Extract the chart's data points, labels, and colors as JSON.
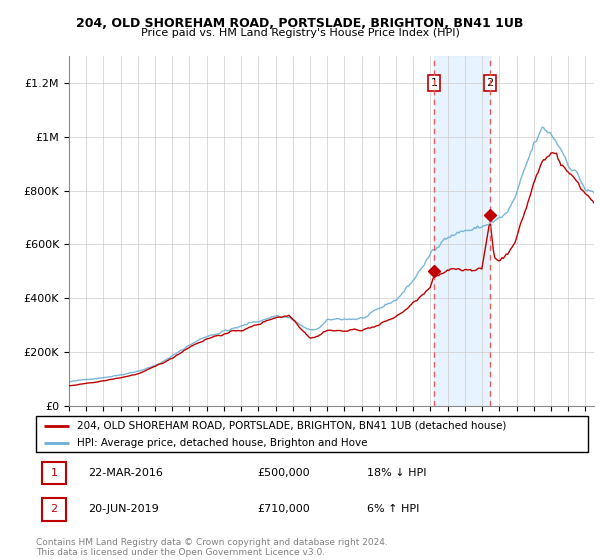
{
  "title1": "204, OLD SHOREHAM ROAD, PORTSLADE, BRIGHTON, BN41 1UB",
  "title2": "Price paid vs. HM Land Registry's House Price Index (HPI)",
  "legend_line1": "204, OLD SHOREHAM ROAD, PORTSLADE, BRIGHTON, BN41 1UB (detached house)",
  "legend_line2": "HPI: Average price, detached house, Brighton and Hove",
  "transaction1_date": "22-MAR-2016",
  "transaction1_price": "£500,000",
  "transaction1_hpi": "18% ↓ HPI",
  "transaction2_date": "20-JUN-2019",
  "transaction2_price": "£710,000",
  "transaction2_hpi": "6% ↑ HPI",
  "footnote": "Contains HM Land Registry data © Crown copyright and database right 2024.\nThis data is licensed under the Open Government Licence v3.0.",
  "hpi_color": "#6baed6",
  "price_color": "#c00000",
  "vline_color": "#e06060",
  "highlight_color": "#ddeeff",
  "ylim": [
    0,
    1300000
  ],
  "yticks": [
    0,
    200000,
    400000,
    600000,
    800000,
    1000000,
    1200000
  ],
  "ytick_labels": [
    "£0",
    "£200K",
    "£400K",
    "£600K",
    "£800K",
    "£1M",
    "£1.2M"
  ],
  "sale1_x": 2016.21,
  "sale1_y": 500000,
  "sale2_x": 2019.46,
  "sale2_y": 710000,
  "vline1_x": 2016.21,
  "vline2_x": 2019.46,
  "xmin": 1995,
  "xmax": 2025.5
}
